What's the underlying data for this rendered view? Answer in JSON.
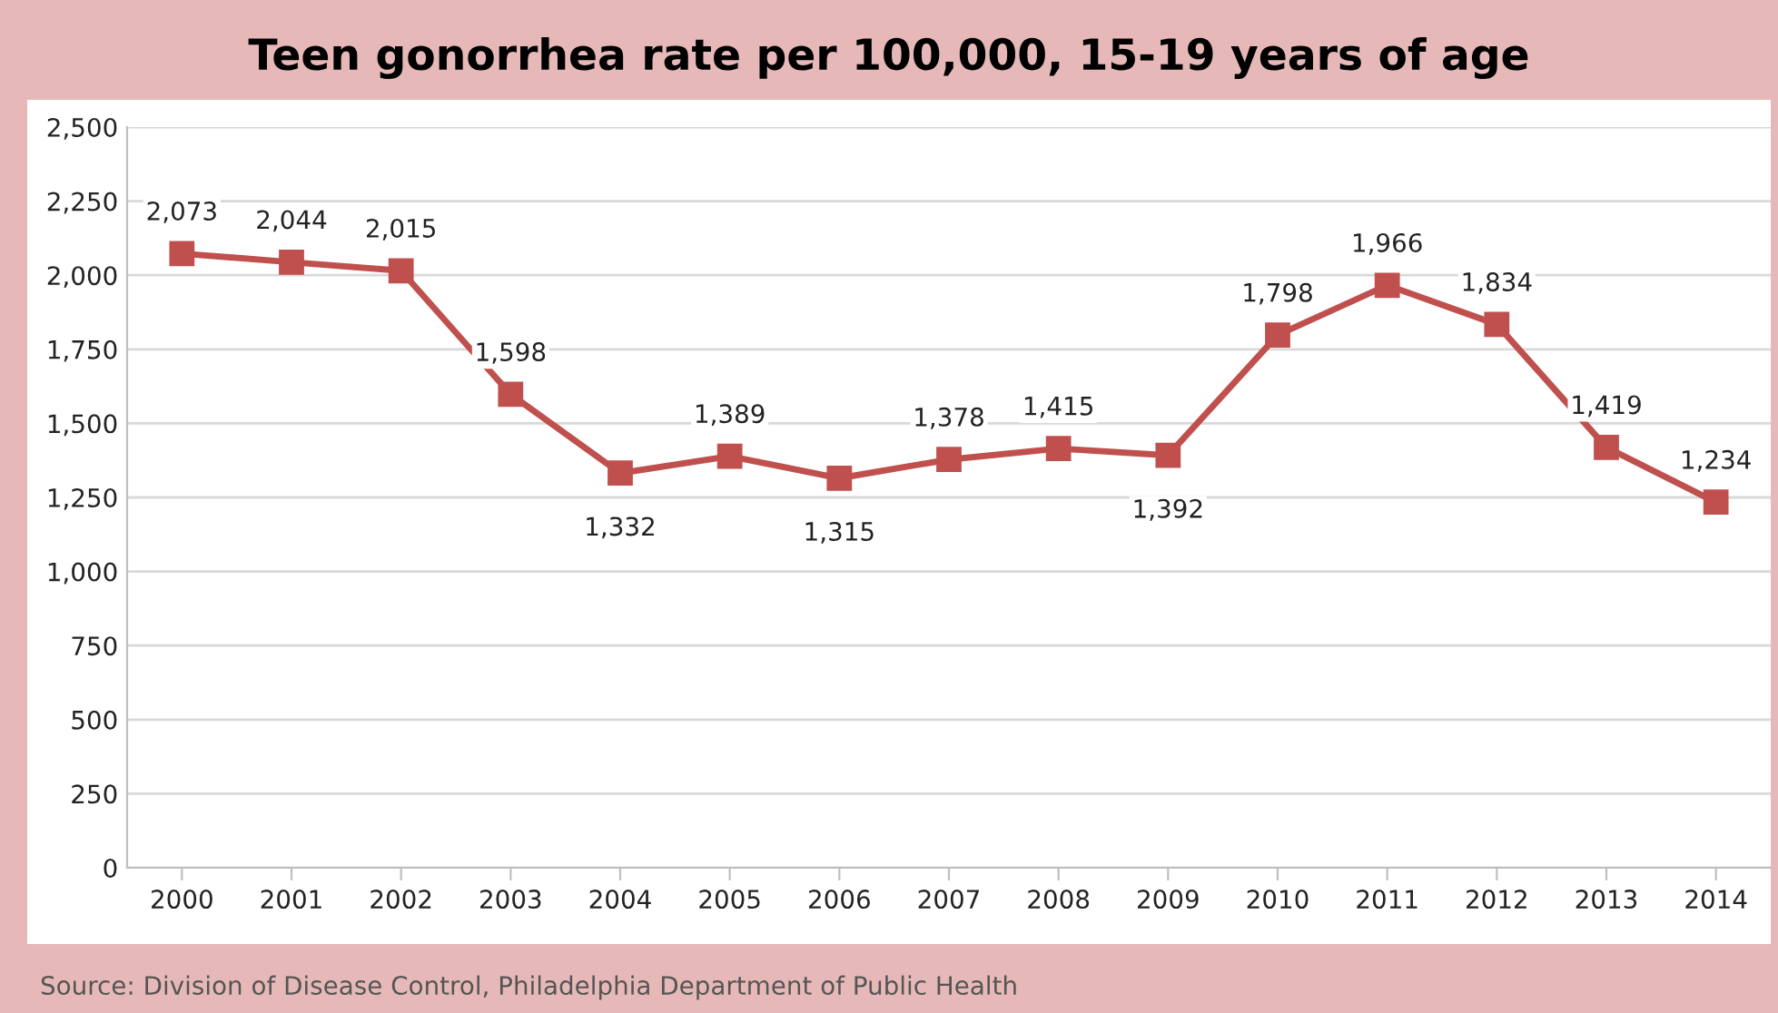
{
  "chart_data": {
    "type": "line",
    "title": "Teen gonorrhea rate per 100,000, 15-19 years of age",
    "categories": [
      "2000",
      "2001",
      "2002",
      "2003",
      "2004",
      "2005",
      "2006",
      "2007",
      "2008",
      "2009",
      "2010",
      "2011",
      "2012",
      "2013",
      "2014"
    ],
    "series": [
      {
        "color": "#c0504d",
        "values": [
          2073,
          2044,
          2015,
          1598,
          1332,
          1389,
          1315,
          1378,
          1415,
          1392,
          1798,
          1966,
          1834,
          1419,
          1234
        ],
        "value_labels": [
          "2,073",
          "2,044",
          "2,015",
          "1,598",
          "1,332",
          "1,389",
          "1,315",
          "1,378",
          "1,415",
          "1,392",
          "1,798",
          "1,966",
          "1,834",
          "1,419",
          "1,234"
        ]
      }
    ],
    "ylim": [
      0,
      2500
    ],
    "yticks": [
      {
        "value": 0,
        "label": "0"
      },
      {
        "value": 250,
        "label": "250"
      },
      {
        "value": 500,
        "label": "500"
      },
      {
        "value": 750,
        "label": "750"
      },
      {
        "value": 1000,
        "label": "1,000"
      },
      {
        "value": 1250,
        "label": "1,250"
      },
      {
        "value": 1500,
        "label": "1,500"
      },
      {
        "value": 1750,
        "label": "1,750"
      },
      {
        "value": 2000,
        "label": "2,000"
      },
      {
        "value": 2250,
        "label": "2,250"
      },
      {
        "value": 2500,
        "label": "2,500"
      }
    ],
    "grid": "y",
    "marker": "square",
    "line_style": "solid",
    "annotations": [
      "Source: Division of Disease Control, Philadelphia Department of Public Health"
    ]
  }
}
